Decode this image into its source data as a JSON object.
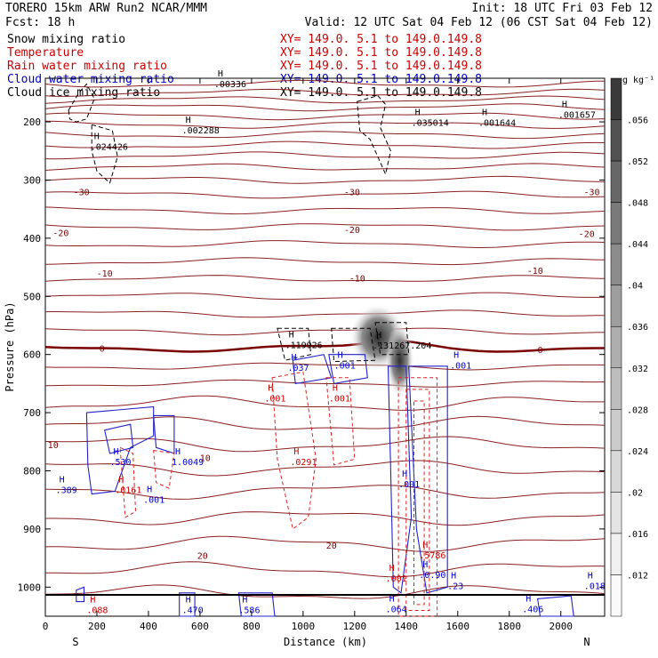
{
  "header": {
    "title_left": "TORERO  15km ARW  Run2   NCAR/MMM",
    "init": "Init: 18 UTC Fri 03 Feb 12",
    "fcst": "Fcst:  18 h",
    "valid": "Valid: 12 UTC Sat 04 Feb 12 (06 CST Sat 04 Feb 12)"
  },
  "fields": [
    {
      "name": "Snow mixing ratio",
      "color": "#000000",
      "xy": ""
    },
    {
      "name": "Temperature",
      "color": "#cc0000",
      "xy": "XY= 149.0.  5.1 to 149.0.149.8"
    },
    {
      "name": "Rain water mixing ratio",
      "color": "#cc0000",
      "xy": "XY= 149.0.  5.1 to 149.0.149.8"
    },
    {
      "name": "Cloud water mixing ratio",
      "color": "#0000cc",
      "xy": "XY= 149.0.  5.1 to 149.0.149.8"
    },
    {
      "name": "Cloud ice mixing ratio",
      "color": "#000000",
      "xy": "XY= 149.0.  5.1 to 149.0.149.8"
    }
  ],
  "xy_first": "XY= 149.0.  5.1 to 149.0.149.8",
  "chart_data": {
    "type": "heatmap",
    "xlabel": "Distance (km)",
    "ylabel": "Pressure (hPa)",
    "xlim": [
      0,
      2170
    ],
    "ylim": [
      1050,
      125
    ],
    "x_ticks": [
      0,
      200,
      400,
      600,
      800,
      1000,
      1200,
      1400,
      1600,
      1800,
      2000
    ],
    "y_ticks": [
      200,
      300,
      400,
      500,
      600,
      700,
      800,
      900,
      1000
    ],
    "x_end_labels": [
      "S",
      "N"
    ],
    "colorbar": {
      "unit": "g kg⁻¹",
      "ticks": [
        ".012",
        ".016",
        ".02",
        ".024",
        ".028",
        ".032",
        ".036",
        ".04",
        ".044",
        ".048",
        ".052",
        ".056"
      ],
      "colors": [
        "#fafafa",
        "#f0f0f0",
        "#e4e4e4",
        "#d8d8d8",
        "#cbcbcb",
        "#bdbdbd",
        "#aeaeae",
        "#9e9e9e",
        "#8c8c8c",
        "#7a7a7a",
        "#676767",
        "#525252",
        "#3a3a3a"
      ]
    },
    "temperature_labels": [
      {
        "text": "-30",
        "x": 140,
        "p": 320
      },
      {
        "text": "-30",
        "x": 1190,
        "p": 320
      },
      {
        "text": "-30",
        "x": 2120,
        "p": 320
      },
      {
        "text": "-20",
        "x": 60,
        "p": 390
      },
      {
        "text": "-20",
        "x": 1190,
        "p": 385
      },
      {
        "text": "-20",
        "x": 2100,
        "p": 392
      },
      {
        "text": "-10",
        "x": 230,
        "p": 460
      },
      {
        "text": "-10",
        "x": 1210,
        "p": 468
      },
      {
        "text": "-10",
        "x": 1900,
        "p": 455
      },
      {
        "text": "0",
        "x": 220,
        "p": 589
      },
      {
        "text": "0",
        "x": 1920,
        "p": 591
      },
      {
        "text": "10",
        "x": 30,
        "p": 755
      },
      {
        "text": "10",
        "x": 620,
        "p": 777
      },
      {
        "text": "20",
        "x": 610,
        "p": 945
      },
      {
        "text": "20",
        "x": 1110,
        "p": 928
      }
    ],
    "maxima_labels": [
      {
        "text": ".024426",
        "x": 175,
        "p": 248,
        "color": "#000000"
      },
      {
        "text": ".002288",
        "x": 530,
        "p": 220,
        "color": "#000000"
      },
      {
        "text": ".00336",
        "x": 655,
        "p": 140,
        "color": "#000000"
      },
      {
        "text": ".035014",
        "x": 1420,
        "p": 207,
        "color": "#000000"
      },
      {
        "text": ".001644",
        "x": 1680,
        "p": 207,
        "color": "#000000"
      },
      {
        "text": ".001657",
        "x": 1990,
        "p": 193,
        "color": "#000000"
      },
      {
        "text": ".119926",
        "x": 930,
        "p": 589,
        "color": "#000000"
      },
      {
        "text": ".131267.204",
        "x": 1270,
        "p": 590,
        "color": "#000000"
      },
      {
        "text": ".037",
        "x": 940,
        "p": 628,
        "color": "#0000cc"
      },
      {
        "text": ".001",
        "x": 1120,
        "p": 624,
        "color": "#0000cc"
      },
      {
        "text": ".001",
        "x": 1570,
        "p": 624,
        "color": "#0000cc"
      },
      {
        "text": ".001",
        "x": 850,
        "p": 681,
        "color": "#cc0000"
      },
      {
        "text": ".001",
        "x": 1100,
        "p": 681,
        "color": "#cc0000"
      },
      {
        "text": ".0291",
        "x": 950,
        "p": 790,
        "color": "#cc0000"
      },
      {
        "text": ".530",
        "x": 250,
        "p": 790,
        "color": "#0000cc"
      },
      {
        "text": "1.0049",
        "x": 490,
        "p": 790,
        "color": "#0000cc"
      },
      {
        "text": ".0161",
        "x": 270,
        "p": 838,
        "color": "#cc0000"
      },
      {
        "text": ".389",
        "x": 40,
        "p": 838,
        "color": "#0000cc"
      },
      {
        "text": ".001",
        "x": 380,
        "p": 855,
        "color": "#0000cc"
      },
      {
        "text": ".001",
        "x": 1370,
        "p": 828,
        "color": "#0000cc"
      },
      {
        "text": ".5786",
        "x": 1450,
        "p": 951,
        "color": "#cc0000"
      },
      {
        "text": ".0.90",
        "x": 1450,
        "p": 984,
        "color": "#0000cc"
      },
      {
        "text": ".23",
        "x": 1560,
        "p": 1003,
        "color": "#0000cc"
      },
      {
        "text": ".001",
        "x": 1320,
        "p": 990,
        "color": "#cc0000"
      },
      {
        "text": ".088",
        "x": 160,
        "p": 1045,
        "color": "#cc0000"
      },
      {
        "text": ".470",
        "x": 530,
        "p": 1045,
        "color": "#0000cc"
      },
      {
        "text": ".586",
        "x": 750,
        "p": 1045,
        "color": "#0000cc"
      },
      {
        "text": ".064",
        "x": 1320,
        "p": 1043,
        "color": "#0000cc"
      },
      {
        "text": ".406",
        "x": 1850,
        "p": 1043,
        "color": "#0000cc"
      },
      {
        "text": ".018",
        "x": 2090,
        "p": 1003,
        "color": "#0000cc"
      }
    ]
  }
}
